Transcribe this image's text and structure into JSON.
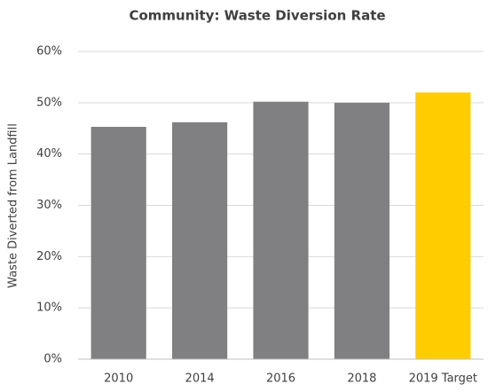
{
  "chart_data": {
    "type": "bar",
    "title": "Community: Waste Diversion Rate",
    "y_label": "Waste Diverted from Landfill",
    "categories": [
      "2010",
      "2014",
      "2016",
      "2018",
      "2019 Target"
    ],
    "values": [
      45.3,
      46.2,
      50.2,
      50,
      52
    ],
    "colors": [
      "#808083",
      "#808083",
      "#808083",
      "#808083",
      "#ffcc00"
    ],
    "ylim": [
      0,
      60
    ],
    "yticks": [
      {
        "value": 0,
        "label": "0%"
      },
      {
        "value": 10,
        "label": "10%"
      },
      {
        "value": 20,
        "label": "20%"
      },
      {
        "value": 30,
        "label": "30%"
      },
      {
        "value": 40,
        "label": "40%"
      },
      {
        "value": 50,
        "label": "50%"
      },
      {
        "value": 60,
        "label": "60%"
      }
    ],
    "grid": true
  }
}
